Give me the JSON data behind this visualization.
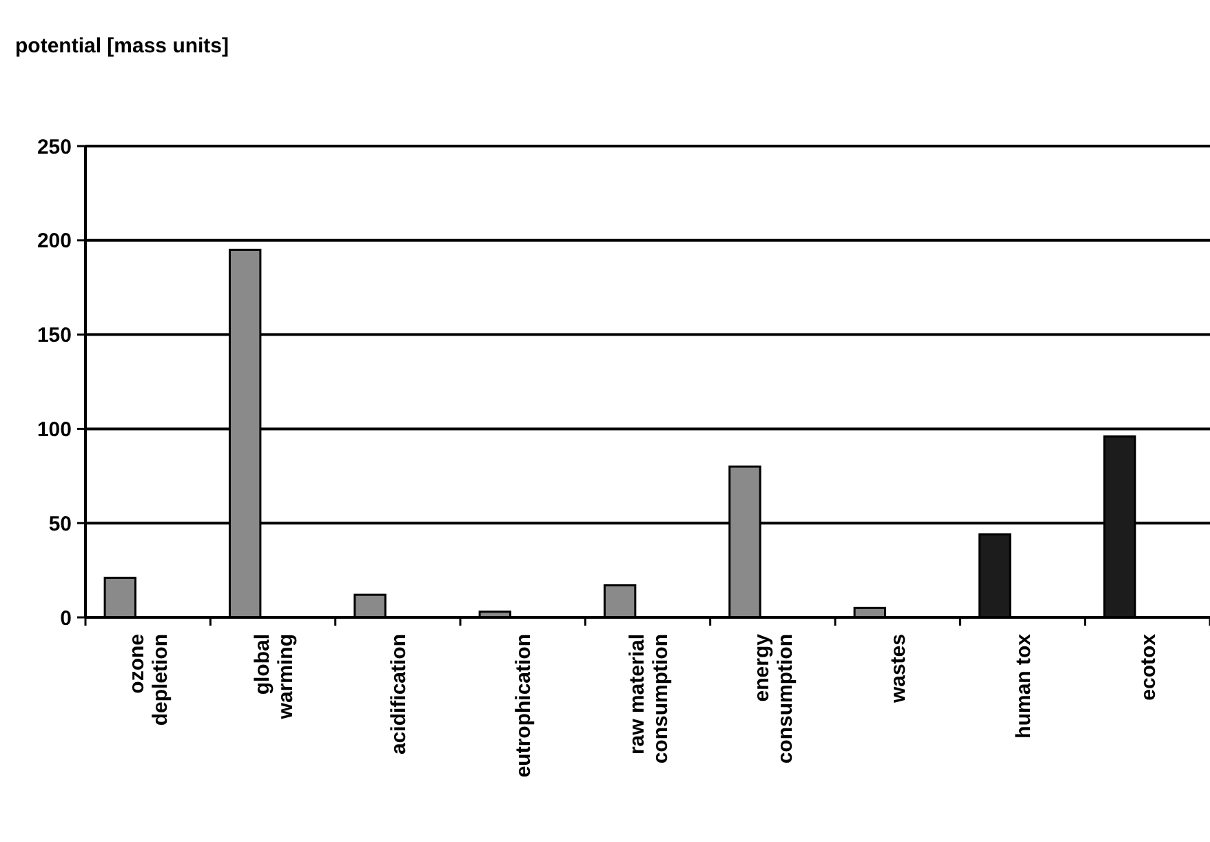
{
  "chart_data": {
    "type": "bar",
    "title": "potential [mass units]",
    "categories": [
      "ozone depletion",
      "global warming",
      "acidification",
      "eutrophication",
      "raw material consumption",
      "energy consumption",
      "wastes",
      "human tox",
      "ecotox"
    ],
    "values": [
      21,
      195,
      12,
      3,
      17,
      80,
      5,
      44,
      96
    ],
    "colors": [
      "#8a8a8a",
      "#8a8a8a",
      "#8a8a8a",
      "#8a8a8a",
      "#8a8a8a",
      "#8a8a8a",
      "#8a8a8a",
      "#1c1c1c",
      "#1c1c1c"
    ],
    "ylim": [
      0,
      250
    ],
    "yticks": [
      0,
      50,
      100,
      150,
      200,
      250
    ],
    "grid": "y"
  }
}
